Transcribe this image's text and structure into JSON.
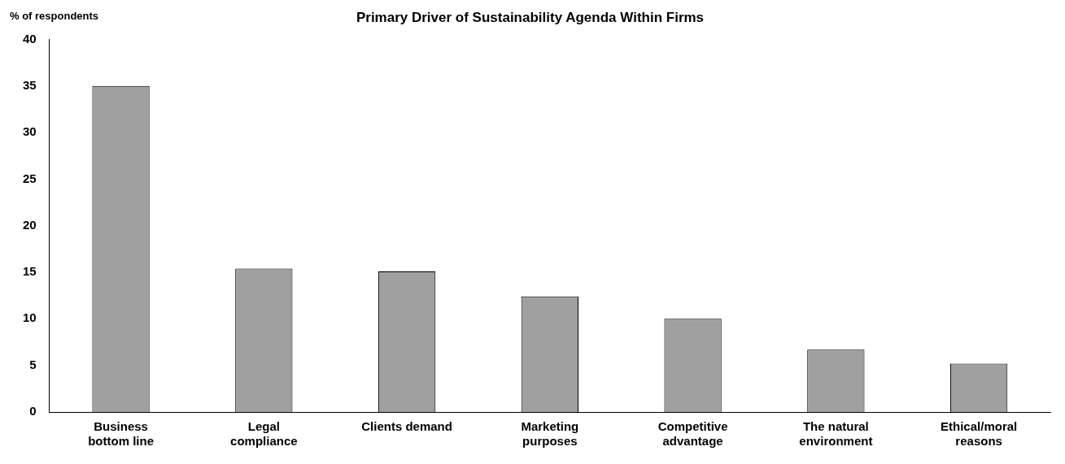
{
  "chart_data": {
    "type": "bar",
    "title": "Primary Driver of Sustainability Agenda Within Firms",
    "ylabel": "% of respondents",
    "categories": [
      "Business bottom line",
      "Legal compliance",
      "Clients demand",
      "Marketing purposes",
      "Competitive advantage",
      "The natural environment",
      "Ethical/moral reasons"
    ],
    "values": [
      35,
      15.4,
      15.1,
      12.4,
      10,
      6.7,
      5.2
    ],
    "color": "#a0a0a0",
    "ylim": [
      0,
      40
    ],
    "yticks": [
      0,
      5,
      10,
      15,
      20,
      25,
      30,
      35,
      40
    ],
    "grid": false,
    "legend": false
  }
}
